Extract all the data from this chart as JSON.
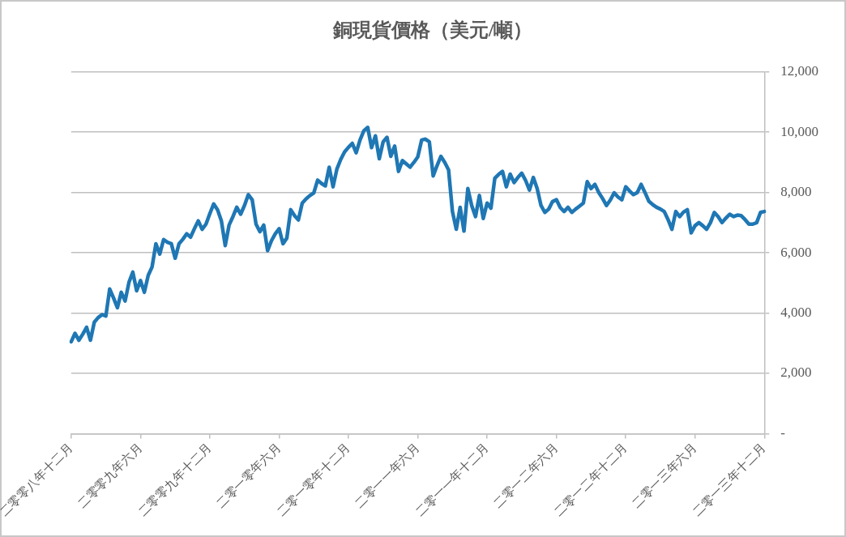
{
  "chart_data": {
    "type": "line",
    "title": "銅現貨價格（美元/噸）",
    "categories": [
      "二零零八年十二月",
      null,
      null,
      null,
      null,
      null,
      null,
      null,
      null,
      null,
      null,
      null,
      null,
      null,
      null,
      null,
      null,
      null,
      "二零零九年六月",
      null,
      null,
      null,
      null,
      null,
      null,
      null,
      null,
      null,
      null,
      null,
      null,
      null,
      null,
      null,
      null,
      null,
      "二零零九年十二月",
      null,
      null,
      null,
      null,
      null,
      null,
      null,
      null,
      null,
      null,
      null,
      null,
      null,
      null,
      null,
      null,
      null,
      "二零一零年六月",
      null,
      null,
      null,
      null,
      null,
      null,
      null,
      null,
      null,
      null,
      null,
      null,
      null,
      null,
      null,
      null,
      null,
      "二零一零年十二月",
      null,
      null,
      null,
      null,
      null,
      null,
      null,
      null,
      null,
      null,
      null,
      null,
      null,
      null,
      null,
      null,
      null,
      "二零一一年六月",
      null,
      null,
      null,
      null,
      null,
      null,
      null,
      null,
      null,
      null,
      null,
      null,
      null,
      null,
      null,
      null,
      null,
      "二零一一年十二月",
      null,
      null,
      null,
      null,
      null,
      null,
      null,
      null,
      null,
      null,
      null,
      null,
      null,
      null,
      null,
      null,
      null,
      "二零一二年六月",
      null,
      null,
      null,
      null,
      null,
      null,
      null,
      null,
      null,
      null,
      null,
      null,
      null,
      null,
      null,
      null,
      null,
      "二零一二年十二月",
      null,
      null,
      null,
      null,
      null,
      null,
      null,
      null,
      null,
      null,
      null,
      null,
      null,
      null,
      null,
      null,
      null,
      "二零一三年六月",
      null,
      null,
      null,
      null,
      null,
      null,
      null,
      null,
      null,
      null,
      null,
      null,
      null,
      null,
      null,
      null,
      null,
      "二零一三年十二月"
    ],
    "series": [
      {
        "color": "#1f77b4",
        "values": [
          3050,
          3330,
          3100,
          3300,
          3530,
          3100,
          3700,
          3850,
          3950,
          3900,
          4800,
          4500,
          4180,
          4690,
          4400,
          5020,
          5360,
          4740,
          5080,
          4690,
          5250,
          5530,
          6300,
          5960,
          6440,
          6350,
          6300,
          5820,
          6300,
          6450,
          6630,
          6520,
          6800,
          7060,
          6780,
          6950,
          7300,
          7620,
          7430,
          7060,
          6240,
          6920,
          7200,
          7510,
          7280,
          7570,
          7930,
          7760,
          6950,
          6700,
          6920,
          6070,
          6400,
          6630,
          6800,
          6300,
          6490,
          7430,
          7230,
          7090,
          7650,
          7790,
          7900,
          7990,
          8410,
          8300,
          8220,
          8840,
          8190,
          8780,
          9100,
          9350,
          9500,
          9630,
          9320,
          9740,
          10050,
          10160,
          9490,
          9880,
          9120,
          9680,
          9830,
          9200,
          9540,
          8700,
          9060,
          8950,
          8840,
          9000,
          9180,
          9740,
          9770,
          9680,
          8550,
          8890,
          9200,
          9000,
          8750,
          7370,
          6780,
          7510,
          6720,
          8130,
          7570,
          7200,
          7900,
          7140,
          7650,
          7480,
          8470,
          8600,
          8700,
          8190,
          8610,
          8330,
          8500,
          8640,
          8400,
          8080,
          8500,
          8130,
          7570,
          7340,
          7450,
          7700,
          7760,
          7500,
          7370,
          7510,
          7340,
          7450,
          7550,
          7650,
          8360,
          8130,
          8270,
          8000,
          7800,
          7570,
          7750,
          7990,
          7850,
          7760,
          8190,
          8050,
          7930,
          8000,
          8270,
          8000,
          7710,
          7600,
          7510,
          7450,
          7370,
          7100,
          6780,
          7370,
          7200,
          7350,
          7430,
          6660,
          6900,
          7000,
          6900,
          6780,
          7000,
          7340,
          7200,
          7000,
          7150,
          7280,
          7200,
          7250,
          7230,
          7100,
          6950,
          6950,
          7000,
          7340,
          7370
        ]
      }
    ],
    "ylim": [
      0,
      12000
    ],
    "yticks": [
      {
        "value": 0,
        "label": "-"
      },
      {
        "value": 2000,
        "label": "2,000"
      },
      {
        "value": 4000,
        "label": "4,000"
      },
      {
        "value": 6000,
        "label": "6,000"
      },
      {
        "value": 8000,
        "label": "8,000"
      },
      {
        "value": 10000,
        "label": "10,000"
      },
      {
        "value": 12000,
        "label": "12,000"
      }
    ],
    "grid": "y",
    "legend": false,
    "marker": "none",
    "line_style": "solid"
  }
}
